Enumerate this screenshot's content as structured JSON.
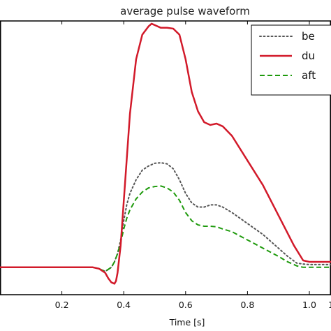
{
  "chart_data": {
    "type": "line",
    "title": "average pulse waveform",
    "xlabel": "Time [s]",
    "ylabel": "",
    "xlim": [
      0.0,
      1.07
    ],
    "ylim": [
      0.0,
      1.0
    ],
    "y_ticks_visible": false,
    "x_ticks": [
      0.2,
      0.4,
      0.6,
      0.8,
      1.0
    ],
    "x_tick_labels": [
      "0.2",
      "0.4",
      "0.6",
      "0.8",
      "1.0"
    ],
    "edge_tick_label": "1",
    "grid": false,
    "legend_position": "top-right",
    "series": [
      {
        "name": "be",
        "color": "#555555",
        "style": "dotted",
        "x": [
          0.0,
          0.1,
          0.2,
          0.3,
          0.32,
          0.34,
          0.36,
          0.37,
          0.38,
          0.39,
          0.4,
          0.41,
          0.42,
          0.44,
          0.46,
          0.48,
          0.5,
          0.52,
          0.54,
          0.56,
          0.58,
          0.6,
          0.62,
          0.64,
          0.66,
          0.68,
          0.7,
          0.72,
          0.75,
          0.8,
          0.85,
          0.9,
          0.93,
          0.96,
          0.98,
          1.0,
          1.05,
          1.07
        ],
        "y": [
          0.1,
          0.1,
          0.1,
          0.1,
          0.095,
          0.085,
          0.1,
          0.12,
          0.15,
          0.2,
          0.27,
          0.33,
          0.37,
          0.42,
          0.455,
          0.47,
          0.48,
          0.482,
          0.478,
          0.46,
          0.42,
          0.37,
          0.335,
          0.32,
          0.32,
          0.328,
          0.328,
          0.32,
          0.3,
          0.26,
          0.22,
          0.17,
          0.14,
          0.115,
          0.112,
          0.11,
          0.11,
          0.11
        ]
      },
      {
        "name": "du",
        "color": "#d21a2a",
        "style": "solid",
        "x": [
          0.0,
          0.1,
          0.2,
          0.3,
          0.32,
          0.34,
          0.35,
          0.36,
          0.37,
          0.375,
          0.38,
          0.39,
          0.4,
          0.41,
          0.42,
          0.44,
          0.46,
          0.48,
          0.49,
          0.5,
          0.52,
          0.54,
          0.56,
          0.58,
          0.6,
          0.62,
          0.64,
          0.66,
          0.68,
          0.7,
          0.72,
          0.75,
          0.8,
          0.85,
          0.9,
          0.95,
          0.98,
          1.0,
          1.05,
          1.07
        ],
        "y": [
          0.1,
          0.1,
          0.1,
          0.1,
          0.095,
          0.08,
          0.06,
          0.045,
          0.04,
          0.05,
          0.08,
          0.18,
          0.34,
          0.5,
          0.66,
          0.86,
          0.95,
          0.98,
          0.99,
          0.985,
          0.975,
          0.975,
          0.972,
          0.95,
          0.86,
          0.74,
          0.67,
          0.63,
          0.62,
          0.625,
          0.615,
          0.58,
          0.49,
          0.4,
          0.29,
          0.18,
          0.125,
          0.12,
          0.12,
          0.12
        ]
      },
      {
        "name": "aft",
        "color": "#1e9a0c",
        "style": "dashed",
        "x": [
          0.0,
          0.1,
          0.2,
          0.3,
          0.32,
          0.34,
          0.36,
          0.37,
          0.38,
          0.39,
          0.4,
          0.41,
          0.42,
          0.44,
          0.46,
          0.48,
          0.5,
          0.52,
          0.54,
          0.56,
          0.58,
          0.6,
          0.62,
          0.64,
          0.66,
          0.68,
          0.7,
          0.72,
          0.75,
          0.8,
          0.85,
          0.9,
          0.93,
          0.96,
          0.98,
          1.0,
          1.05,
          1.07
        ],
        "y": [
          0.1,
          0.1,
          0.1,
          0.1,
          0.095,
          0.085,
          0.1,
          0.12,
          0.15,
          0.19,
          0.24,
          0.28,
          0.31,
          0.35,
          0.375,
          0.39,
          0.395,
          0.397,
          0.39,
          0.375,
          0.345,
          0.3,
          0.27,
          0.255,
          0.25,
          0.25,
          0.248,
          0.24,
          0.23,
          0.2,
          0.17,
          0.14,
          0.12,
          0.105,
          0.1,
          0.1,
          0.1,
          0.1
        ]
      }
    ]
  }
}
